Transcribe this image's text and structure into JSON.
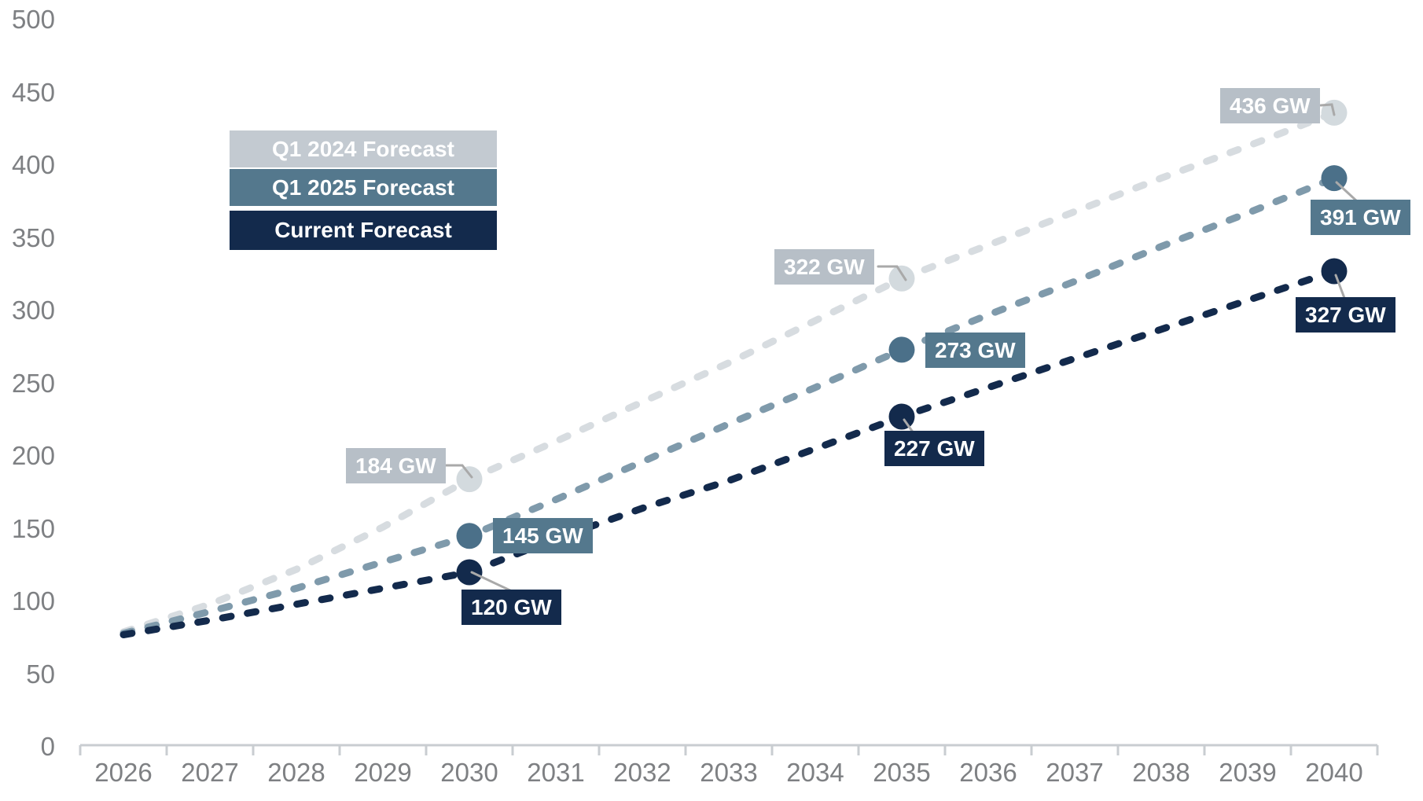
{
  "chart_data": {
    "type": "line",
    "x": [
      2026,
      2027,
      2028,
      2029,
      2030,
      2031,
      2032,
      2033,
      2034,
      2035,
      2036,
      2037,
      2038,
      2039,
      2040
    ],
    "x_labels": [
      "2026",
      "2027",
      "2028",
      "2029",
      "2030",
      "2031",
      "2032",
      "2033",
      "2034",
      "2035",
      "2036",
      "2037",
      "2038",
      "2039",
      "2040"
    ],
    "y_ticks": [
      0,
      50,
      100,
      150,
      200,
      250,
      300,
      350,
      400,
      450,
      500
    ],
    "ylim": [
      0,
      500
    ],
    "unit": "GW",
    "grid": "off",
    "legend_position": "top-left",
    "line_style": "dashed",
    "series": [
      {
        "name": "Q1 2024 Forecast",
        "line_color": "#d7dce0",
        "marker_color": "#d3dade",
        "label_bg": "#b7bfc7",
        "legend_bg": "#c3cad1",
        "values": [
          79,
          98,
          122,
          151,
          184,
          210,
          237,
          264,
          293,
          322,
          345,
          368,
          391,
          413,
          436
        ],
        "labeled_points": [
          {
            "year": 2030,
            "value": 184,
            "label": "184 GW"
          },
          {
            "year": 2035,
            "value": 322,
            "label": "322 GW"
          },
          {
            "year": 2040,
            "value": 436,
            "label": "436 GW"
          }
        ]
      },
      {
        "name": "Q1 2025 Forecast",
        "line_color": "#7f9aab",
        "marker_color": "#4b7089",
        "label_bg": "#54788d",
        "legend_bg": "#54788d",
        "values": [
          78,
          93,
          109,
          127,
          145,
          170,
          196,
          222,
          247,
          273,
          297,
          320,
          344,
          367,
          391
        ],
        "labeled_points": [
          {
            "year": 2030,
            "value": 145,
            "label": "145 GW"
          },
          {
            "year": 2035,
            "value": 273,
            "label": "273 GW"
          },
          {
            "year": 2040,
            "value": 391,
            "label": "391 GW"
          }
        ]
      },
      {
        "name": "Current Forecast",
        "line_color": "#132a4c",
        "marker_color": "#132a4c",
        "label_bg": "#132a4c",
        "legend_bg": "#132a4c",
        "values": [
          77,
          87,
          98,
          109,
          120,
          143,
          164,
          183,
          205,
          227,
          247,
          267,
          287,
          307,
          327
        ],
        "labeled_points": [
          {
            "year": 2030,
            "value": 120,
            "label": "120 GW"
          },
          {
            "year": 2035,
            "value": 227,
            "label": "227 GW"
          },
          {
            "year": 2040,
            "value": 327,
            "label": "327 GW"
          }
        ]
      }
    ],
    "colors": {
      "axis_line": "#c9cdd1",
      "axis_text": "#7e8083",
      "leader_line": "#a9a9a9",
      "label_text": "#ffffff"
    }
  }
}
